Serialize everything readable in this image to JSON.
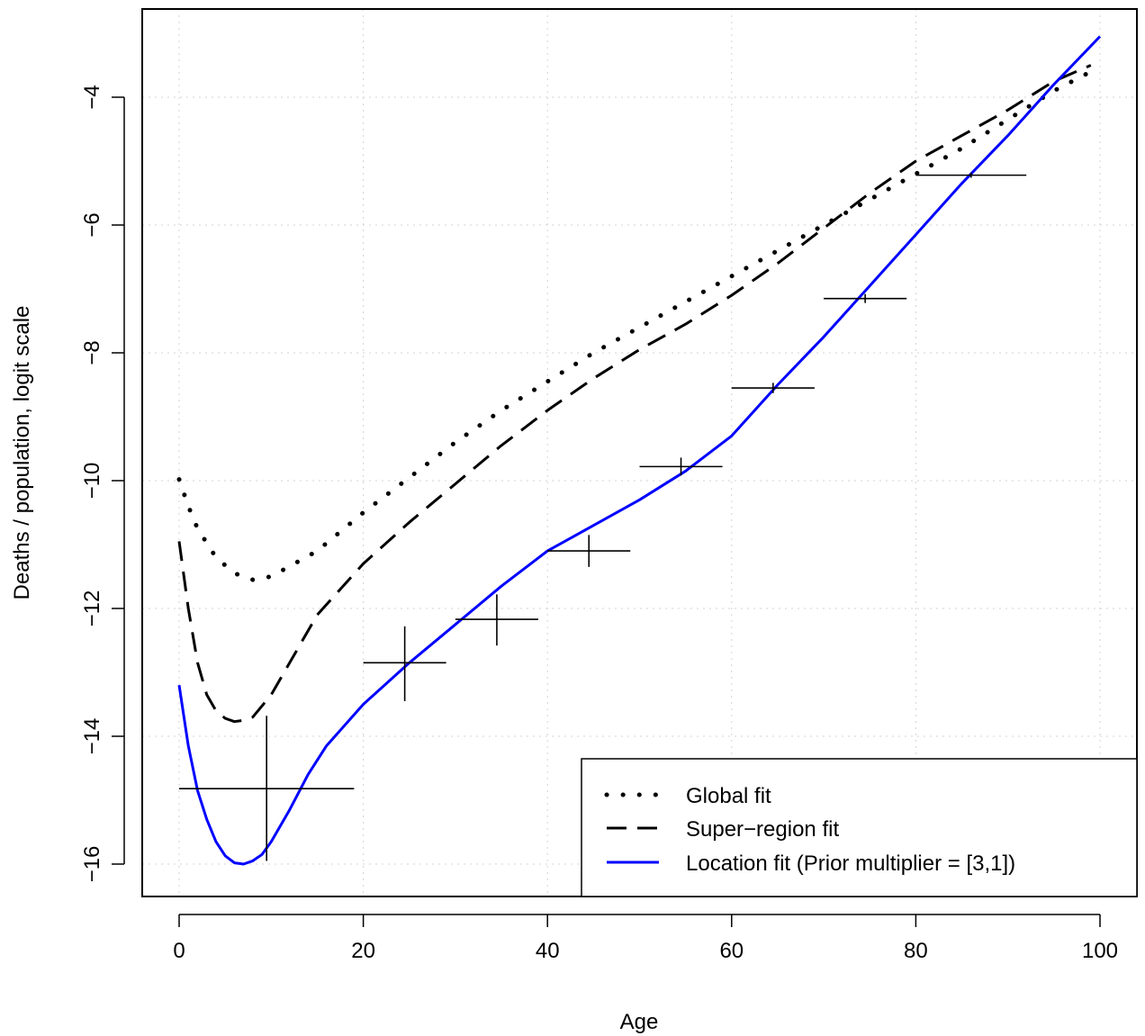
{
  "chart_data": {
    "type": "line",
    "xlabel": "Age",
    "ylabel": "Deaths / population, logit scale",
    "xlim": [
      -4,
      104
    ],
    "ylim": [
      -16.5,
      -2.5
    ],
    "x_ticks": [
      0,
      20,
      40,
      60,
      80,
      100
    ],
    "y_ticks": [
      -16,
      -14,
      -12,
      -10,
      -8,
      -6,
      -4
    ],
    "grid": true,
    "legend_position": "bottom-right",
    "series": [
      {
        "name": "Global fit",
        "style": "dotted",
        "color": "#000000",
        "x": [
          0,
          1,
          2,
          4,
          6,
          8,
          10,
          15,
          20,
          25,
          30,
          35,
          40,
          45,
          50,
          55,
          60,
          65,
          70,
          75,
          80,
          85,
          90,
          95,
          99
        ],
        "y": [
          -9.98,
          -10.4,
          -10.75,
          -11.2,
          -11.45,
          -11.55,
          -11.5,
          -11.1,
          -10.5,
          -9.95,
          -9.4,
          -8.9,
          -8.45,
          -8.0,
          -7.6,
          -7.2,
          -6.8,
          -6.4,
          -6.0,
          -5.6,
          -5.2,
          -4.8,
          -4.35,
          -3.9,
          -3.6
        ]
      },
      {
        "name": "Super−region fit",
        "style": "dashed",
        "color": "#000000",
        "x": [
          0,
          1,
          2,
          3,
          4,
          5,
          6,
          7,
          8,
          10,
          12,
          15,
          20,
          25,
          30,
          35,
          40,
          45,
          50,
          55,
          60,
          65,
          70,
          75,
          80,
          85,
          90,
          95,
          99
        ],
        "y": [
          -10.95,
          -12.0,
          -12.85,
          -13.35,
          -13.6,
          -13.72,
          -13.77,
          -13.75,
          -13.7,
          -13.35,
          -12.85,
          -12.1,
          -11.3,
          -10.65,
          -10.05,
          -9.45,
          -8.9,
          -8.4,
          -7.95,
          -7.55,
          -7.1,
          -6.6,
          -6.05,
          -5.5,
          -5.0,
          -4.6,
          -4.2,
          -3.75,
          -3.5
        ]
      },
      {
        "name": "Location fit (Prior multiplier = [3,1])",
        "style": "solid",
        "color": "#0000ff",
        "x": [
          0,
          1,
          2,
          3,
          4,
          5,
          6,
          7,
          8,
          9,
          10,
          12,
          14,
          16,
          20,
          25,
          30,
          35,
          40,
          45,
          50,
          55,
          60,
          65,
          70,
          75,
          80,
          85,
          90,
          95,
          100
        ],
        "y": [
          -13.2,
          -14.15,
          -14.85,
          -15.3,
          -15.65,
          -15.87,
          -15.98,
          -16.0,
          -15.95,
          -15.85,
          -15.65,
          -15.15,
          -14.6,
          -14.15,
          -13.5,
          -12.85,
          -12.25,
          -11.65,
          -11.1,
          -10.7,
          -10.3,
          -9.85,
          -9.3,
          -8.5,
          -7.75,
          -6.95,
          -6.15,
          -5.35,
          -4.6,
          -3.8,
          -3.05
        ]
      }
    ],
    "data_points": [
      {
        "x_low": 0,
        "x_high": 19,
        "x": 9.5,
        "y": -14.82,
        "y_low": -15.95,
        "y_high": -13.68
      },
      {
        "x_low": 20,
        "x_high": 29,
        "x": 24.5,
        "y": -12.85,
        "y_low": -13.45,
        "y_high": -12.28
      },
      {
        "x_low": 30,
        "x_high": 39,
        "x": 34.5,
        "y": -12.17,
        "y_low": -12.58,
        "y_high": -11.78
      },
      {
        "x_low": 40,
        "x_high": 49,
        "x": 44.5,
        "y": -11.1,
        "y_low": -11.35,
        "y_high": -10.85
      },
      {
        "x_low": 50,
        "x_high": 59,
        "x": 54.5,
        "y": -9.78,
        "y_low": -9.92,
        "y_high": -9.64
      },
      {
        "x_low": 60,
        "x_high": 69,
        "x": 64.5,
        "y": -8.55,
        "y_low": -8.63,
        "y_high": -8.47
      },
      {
        "x_low": 70,
        "x_high": 79,
        "x": 74.5,
        "y": -7.15,
        "y_low": -7.22,
        "y_high": -7.08
      },
      {
        "x_low": 80,
        "x_high": 92,
        "x": 86,
        "y": -5.22,
        "y_low": -5.26,
        "y_high": -5.18
      }
    ]
  }
}
